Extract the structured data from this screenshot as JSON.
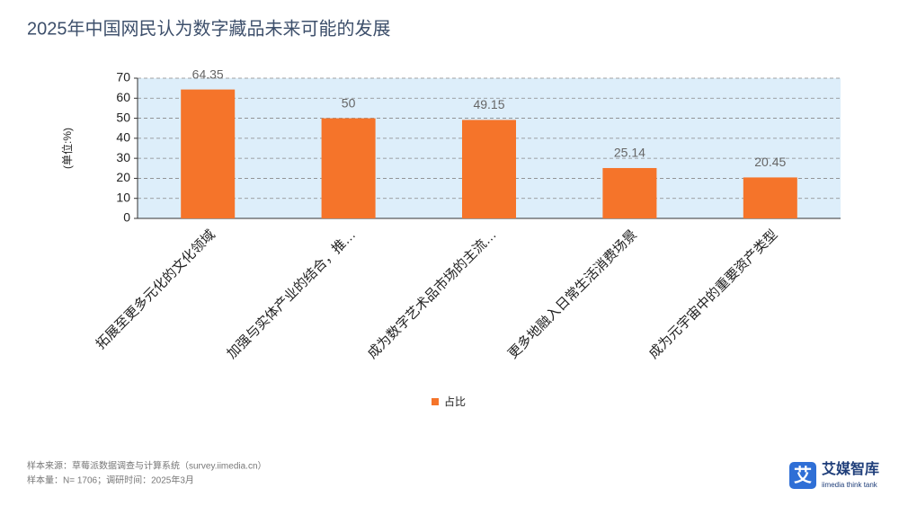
{
  "chart_data": {
    "type": "bar",
    "title": "2025年中国网民认为数字藏品未来可能的发展",
    "y_label": "(单位:%)",
    "categories": [
      "拓展至更多元化的文化领域",
      "加强与实体产业的结合，推…",
      "成为数字艺术品市场的主流…",
      "更多地融入日常生活消费场景",
      "成为元宇宙中的重要资产类型"
    ],
    "series": [
      {
        "name": "占比",
        "color": "#f5742a",
        "values": [
          64.35,
          50,
          49.15,
          25.14,
          20.45
        ]
      }
    ],
    "ylim": [
      0,
      70
    ],
    "yticks": [
      0,
      10,
      20,
      30,
      40,
      50,
      60,
      70
    ],
    "grid": true,
    "legend": "bottom"
  },
  "footer": {
    "source": "样本来源：草莓派数据调查与计算系统（survey.iimedia.cn）",
    "sample": "样本量：N= 1706；调研时间：2025年3月"
  },
  "logo": {
    "mark": "艾",
    "name": "艾媒智库",
    "tagline": "iimedia think tank"
  }
}
